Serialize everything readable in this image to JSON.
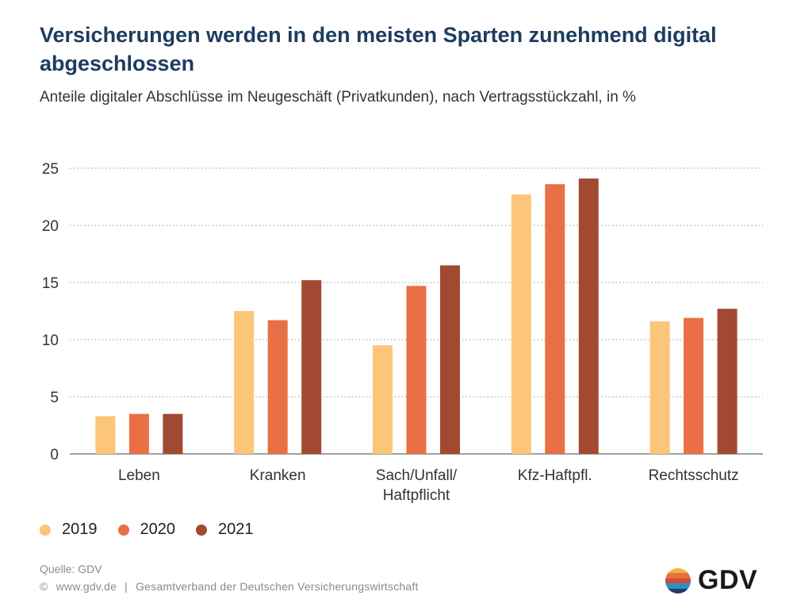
{
  "header": {
    "title": "Versicherungen werden in den meisten Sparten zunehmend digital abgeschlossen",
    "subtitle": "Anteile digitaler Abschlüsse im Neugeschäft (Privatkunden), nach Vertragsstückzahl, in %"
  },
  "chart_data": {
    "type": "bar",
    "title": "",
    "xlabel": "",
    "ylabel": "",
    "ylim": [
      0,
      25
    ],
    "yticks": [
      0,
      5,
      10,
      15,
      20,
      25
    ],
    "grid": true,
    "legend_position": "bottom-left",
    "categories": [
      "Leben",
      "Kranken",
      "Sach/Unfall/\nHaftpflicht",
      "Kfz-Haftpfl.",
      "Rechtsschutz"
    ],
    "series": [
      {
        "name": "2019",
        "color": "#fbc57a",
        "values": [
          3.3,
          12.5,
          9.5,
          22.7,
          11.6
        ]
      },
      {
        "name": "2020",
        "color": "#e96f45",
        "values": [
          3.5,
          11.7,
          14.7,
          23.6,
          11.9
        ]
      },
      {
        "name": "2021",
        "color": "#a24a31",
        "values": [
          3.5,
          15.2,
          16.5,
          24.1,
          12.7
        ]
      }
    ]
  },
  "footer": {
    "source": "Quelle: GDV",
    "copyright": "©",
    "website": "www.gdv.de",
    "separator": "|",
    "organization": "Gesamtverband der Deutschen Versicherungswirtschaft",
    "logo_text": "GDV"
  }
}
